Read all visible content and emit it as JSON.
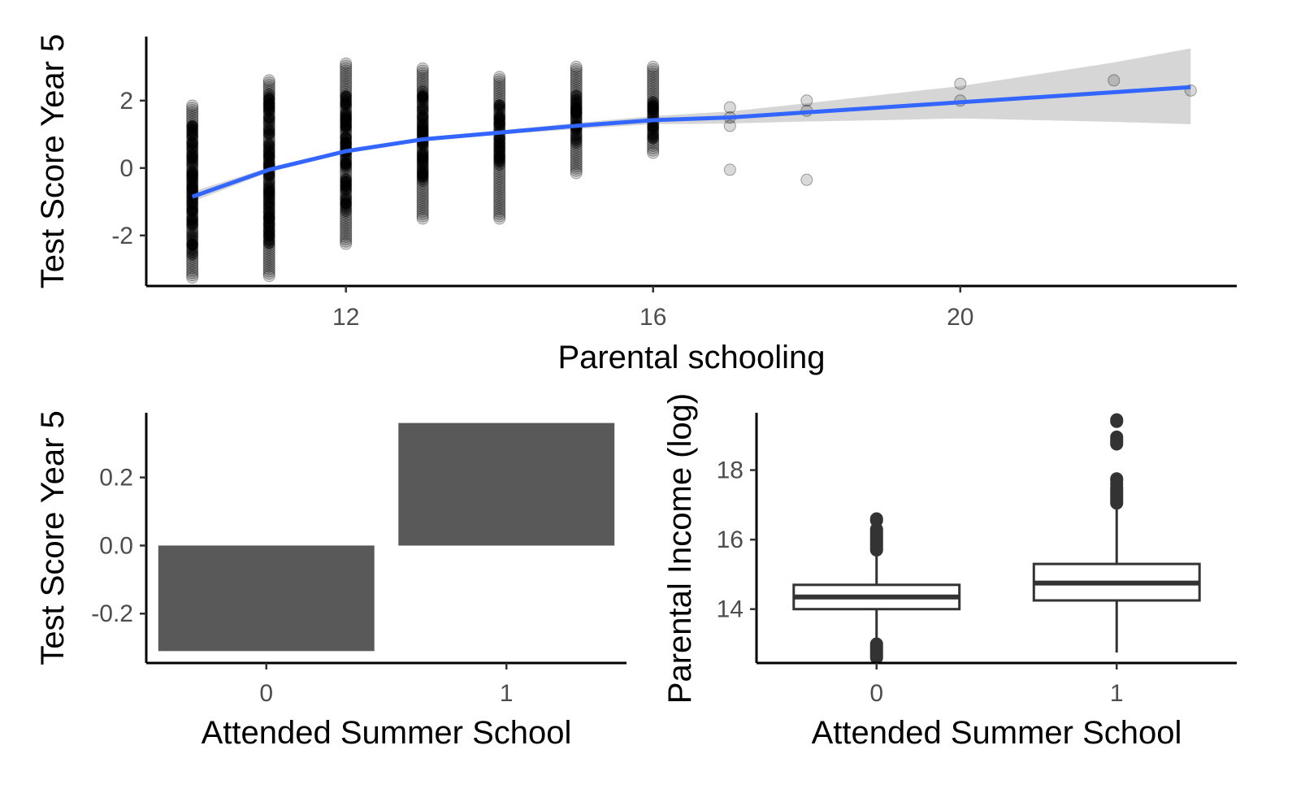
{
  "chart_data": [
    {
      "type": "scatter",
      "xlabel": "Parental schooling",
      "ylabel": "Test Score Year 5",
      "xlim": [
        9.4,
        23.6
      ],
      "ylim": [
        -3.5,
        3.9
      ],
      "xticks": [
        12,
        16,
        20
      ],
      "yticks": [
        -2,
        0,
        2
      ],
      "ytick_labels": [
        "-2",
        "0",
        "2"
      ],
      "grid": false,
      "point_color": "#000000",
      "point_alpha": 0.15,
      "smooth_color": "#3366FF",
      "band_color": "#999999",
      "columns": [
        {
          "x": 10,
          "min": -3.25,
          "max": 1.85,
          "dense": [
            -2.6,
            1.3
          ]
        },
        {
          "x": 11,
          "min": -3.2,
          "max": 2.6,
          "dense": [
            -2.3,
            2.2
          ]
        },
        {
          "x": 12,
          "min": -2.25,
          "max": 3.1,
          "dense": [
            -1.3,
            2.2
          ]
        },
        {
          "x": 13,
          "min": -1.5,
          "max": 2.95,
          "dense": [
            -0.5,
            2.3
          ]
        },
        {
          "x": 14,
          "min": -1.5,
          "max": 2.7,
          "dense": [
            0.0,
            1.9
          ]
        },
        {
          "x": 15,
          "min": -0.15,
          "max": 3.0,
          "dense": [
            0.6,
            2.2
          ]
        },
        {
          "x": 16,
          "min": 0.45,
          "max": 3.0,
          "dense": [
            0.8,
            2.0
          ]
        }
      ],
      "points": [
        {
          "x": 17,
          "y": 1.8
        },
        {
          "x": 17,
          "y": 1.5
        },
        {
          "x": 17,
          "y": 1.25
        },
        {
          "x": 17,
          "y": -0.05
        },
        {
          "x": 18,
          "y": 2.0
        },
        {
          "x": 18,
          "y": 1.7
        },
        {
          "x": 18,
          "y": -0.35
        },
        {
          "x": 20,
          "y": 2.5
        },
        {
          "x": 20,
          "y": 2.0
        },
        {
          "x": 22,
          "y": 2.6
        },
        {
          "x": 23,
          "y": 2.3
        }
      ],
      "smooth": {
        "x": [
          10,
          11,
          12,
          13,
          14,
          15,
          16,
          17,
          18,
          19,
          20,
          21,
          22,
          23
        ],
        "y": [
          -0.85,
          -0.05,
          0.5,
          0.85,
          1.05,
          1.25,
          1.42,
          1.5,
          1.65,
          1.8,
          1.95,
          2.1,
          2.25,
          2.4
        ],
        "lower": [
          -1.0,
          -0.12,
          0.44,
          0.79,
          0.99,
          1.16,
          1.3,
          1.32,
          1.38,
          1.42,
          1.47,
          1.42,
          1.37,
          1.3
        ],
        "upper": [
          -0.7,
          0.02,
          0.56,
          0.91,
          1.11,
          1.34,
          1.54,
          1.68,
          1.92,
          2.18,
          2.43,
          2.78,
          3.13,
          3.55
        ]
      }
    },
    {
      "type": "bar",
      "xlabel": "Attended Summer School",
      "ylabel": "Test Score Year 5",
      "categories": [
        "0",
        "1"
      ],
      "values": [
        -0.31,
        0.36
      ],
      "ylim": [
        -0.345,
        0.39
      ],
      "yticks": [
        -0.2,
        0.0,
        0.2
      ],
      "ytick_labels": [
        "-0.2",
        "0.0",
        "0.2"
      ],
      "grid": false,
      "bar_color": "#595959"
    },
    {
      "type": "box",
      "xlabel": "Attended Summer School",
      "ylabel": "Parental Income (log)",
      "categories": [
        "0",
        "1"
      ],
      "ylim": [
        12.45,
        19.65
      ],
      "yticks": [
        14,
        16,
        18
      ],
      "ytick_labels": [
        "14",
        "16",
        "18"
      ],
      "grid": false,
      "boxes": [
        {
          "category": "0",
          "q1": 14.0,
          "median": 14.35,
          "q3": 14.7,
          "whisker_low": 13.05,
          "whisker_high": 15.65,
          "outliers": [
            12.6,
            12.65,
            12.7,
            12.75,
            12.8,
            12.85,
            12.9,
            12.95,
            13.0,
            15.7,
            15.75,
            15.8,
            15.85,
            15.9,
            15.95,
            16.0,
            16.05,
            16.1,
            16.15,
            16.2,
            16.25,
            16.3,
            16.55,
            16.6
          ]
        },
        {
          "category": "1",
          "q1": 14.25,
          "median": 14.75,
          "q3": 15.3,
          "whisker_low": 12.75,
          "whisker_high": 17.0,
          "outliers": [
            17.05,
            17.1,
            17.15,
            17.2,
            17.25,
            17.3,
            17.35,
            17.4,
            17.45,
            17.5,
            17.6,
            17.7,
            17.75,
            18.75,
            18.8,
            18.85,
            18.9,
            18.95,
            19.4,
            19.45
          ]
        }
      ]
    }
  ]
}
